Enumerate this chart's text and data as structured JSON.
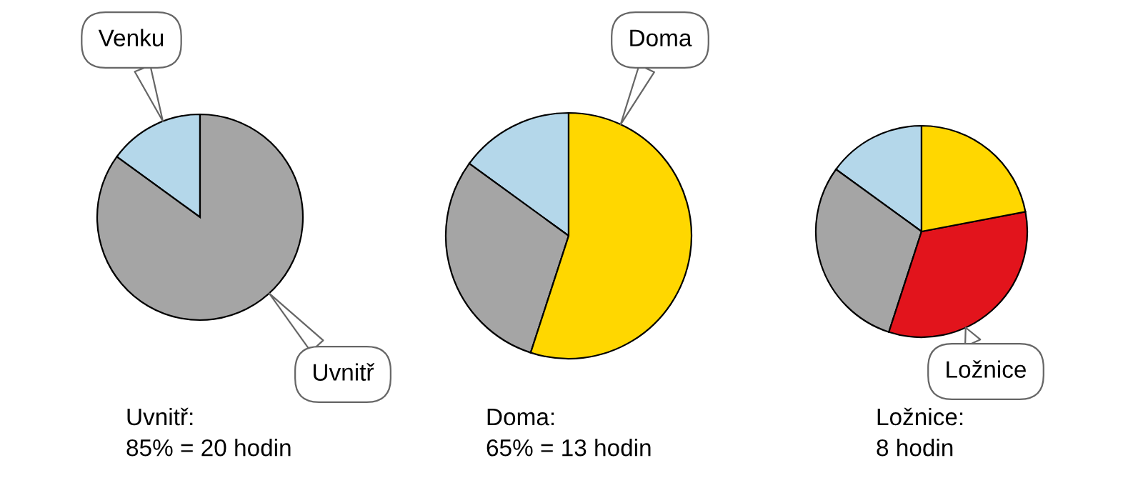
{
  "chart_data": [
    {
      "type": "pie",
      "categories": [
        "Venku",
        "Uvnitř"
      ],
      "values": [
        15,
        85
      ],
      "colors": [
        "#b4d7ea",
        "#a5a5a5"
      ],
      "annotations": [
        "Uvnitř:\n85% = 20 hodin"
      ]
    },
    {
      "type": "pie",
      "categories": [
        null,
        null,
        "Doma"
      ],
      "values": [
        15,
        30,
        55
      ],
      "colors": [
        "#b4d7ea",
        "#a5a5a5",
        "#ffd700"
      ],
      "annotations": [
        "Doma:\n65% = 13 hodin"
      ]
    },
    {
      "type": "pie",
      "categories": [
        null,
        null,
        "Ložnice",
        null
      ],
      "values": [
        15,
        30,
        33,
        22
      ],
      "colors": [
        "#b4d7ea",
        "#a5a5a5",
        "#e2141c",
        "#ffd700"
      ],
      "annotations": [
        "Ložnice:\n8 hodin"
      ]
    }
  ]
}
